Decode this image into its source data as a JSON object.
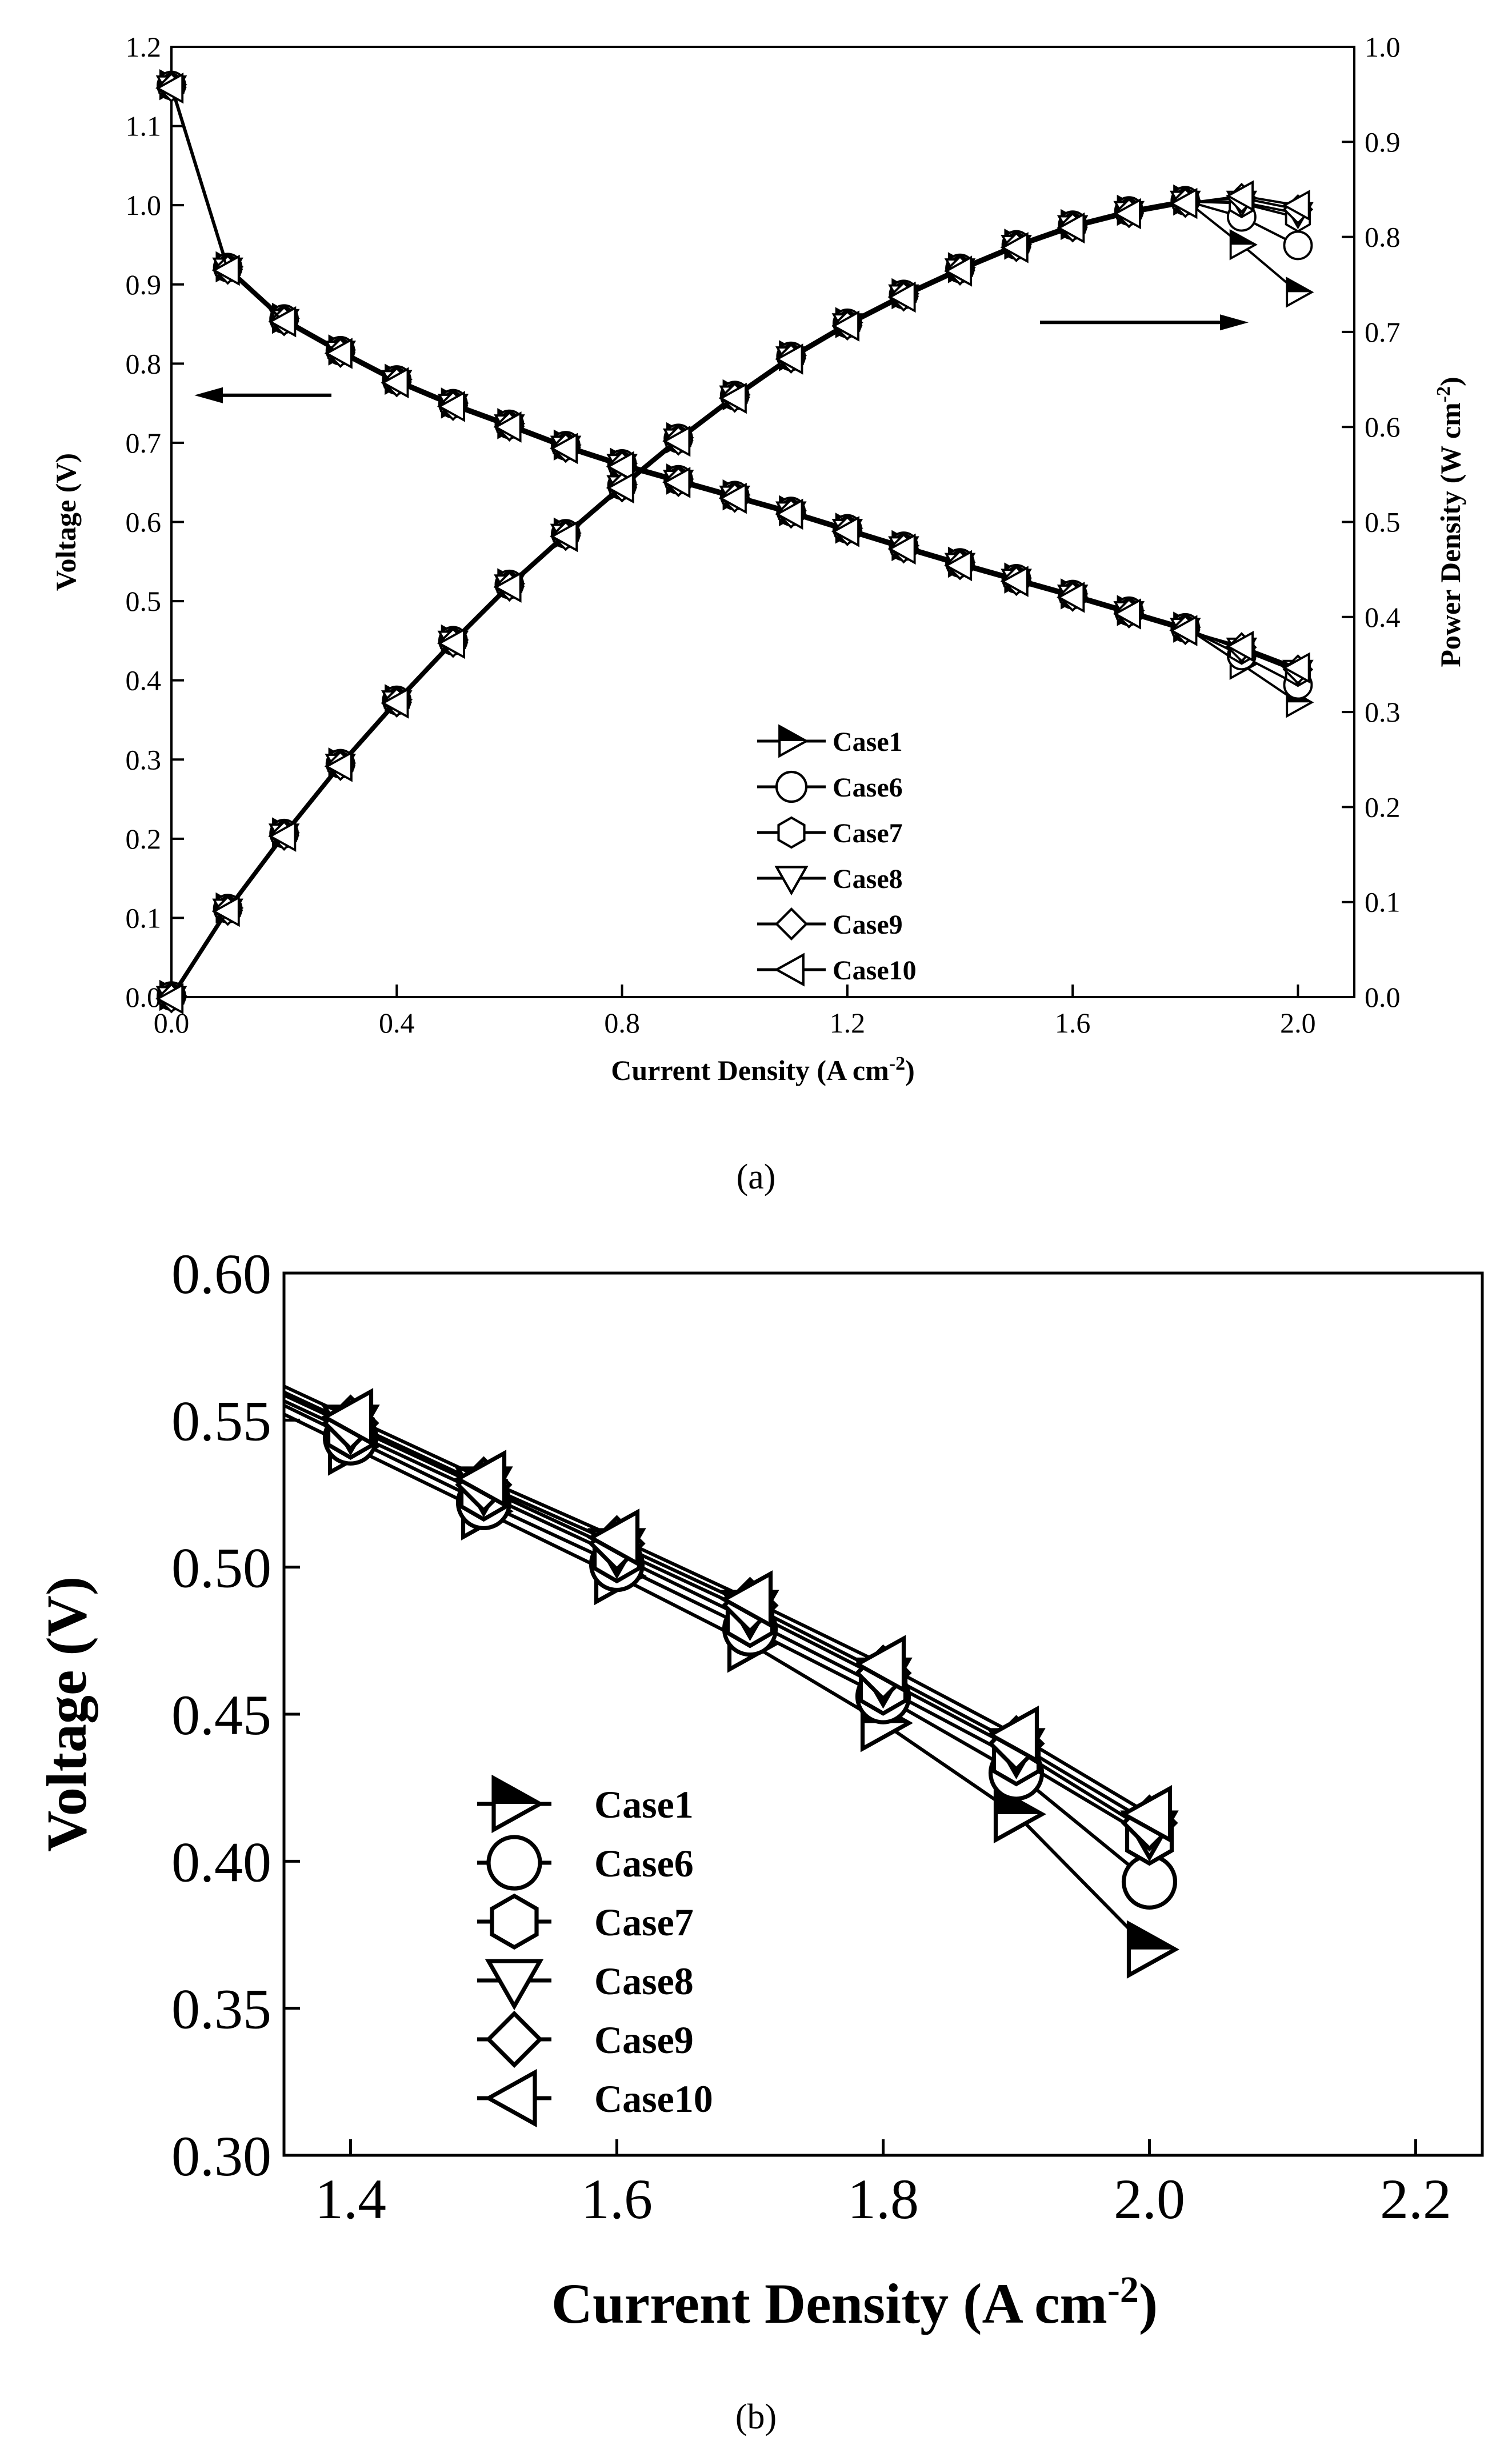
{
  "chart_data": [
    {
      "type": "line",
      "panel_label": "(a)",
      "xlabel": "Current Density (A cm",
      "xlabel_sup": "-2",
      "xlabel_end": ")",
      "ylabel": "Voltage (V)",
      "y2label": "Power Density (W cm",
      "y2label_sup": "-2",
      "y2label_end": ")",
      "xlim": [
        0,
        2.1
      ],
      "ylim": [
        0,
        1.2
      ],
      "y2lim": [
        0,
        1.0
      ],
      "xticks": [
        "0.0",
        "0.4",
        "0.8",
        "1.2",
        "1.6",
        "2.0"
      ],
      "xtick_values": [
        0,
        0.4,
        0.8,
        1.2,
        1.6,
        2.0
      ],
      "yticks": [
        "0.0",
        "0.1",
        "0.2",
        "0.3",
        "0.4",
        "0.5",
        "0.6",
        "0.7",
        "0.8",
        "0.9",
        "1.0",
        "1.1",
        "1.2"
      ],
      "ytick_values": [
        0,
        0.1,
        0.2,
        0.3,
        0.4,
        0.5,
        0.6,
        0.7,
        0.8,
        0.9,
        1.0,
        1.1,
        1.2
      ],
      "y2ticks": [
        "0.0",
        "0.1",
        "0.2",
        "0.3",
        "0.4",
        "0.5",
        "0.6",
        "0.7",
        "0.8",
        "0.9",
        "1.0"
      ],
      "y2tick_values": [
        0,
        0.1,
        0.2,
        0.3,
        0.4,
        0.5,
        0.6,
        0.7,
        0.8,
        0.9,
        1.0
      ],
      "arrow_note": "left arrow points to voltage axis, right arrow points to power density axis",
      "x": [
        0.0,
        0.1,
        0.2,
        0.3,
        0.4,
        0.5,
        0.6,
        0.7,
        0.8,
        0.9,
        1.0,
        1.1,
        1.2,
        1.3,
        1.4,
        1.5,
        1.6,
        1.7,
        1.8,
        1.9,
        2.0
      ],
      "voltage_common": [
        1.15,
        0.92,
        0.855,
        0.815,
        0.778,
        0.748,
        0.722,
        0.695,
        0.672,
        0.652,
        0.632,
        0.612,
        0.59,
        0.568,
        0.547,
        0.527,
        0.507,
        0.486,
        0.465
      ],
      "series": [
        {
          "name": "Case1",
          "marker": "right-tri-half",
          "voltage_tail": [
            0.418,
            0.37
          ],
          "power_tail": [
            0.79,
            0.74
          ]
        },
        {
          "name": "Case6",
          "marker": "circle",
          "voltage_tail": [
            0.43,
            0.393
          ],
          "power_tail": [
            0.82,
            0.79
          ]
        },
        {
          "name": "Case7",
          "marker": "hexagon",
          "voltage_tail": [
            0.438,
            0.41
          ],
          "power_tail": [
            0.835,
            0.82
          ]
        },
        {
          "name": "Case8",
          "marker": "down-tri",
          "voltage_tail": [
            0.44,
            0.412
          ],
          "power_tail": [
            0.837,
            0.825
          ]
        },
        {
          "name": "Case9",
          "marker": "diamond",
          "voltage_tail": [
            0.443,
            0.415
          ],
          "power_tail": [
            0.842,
            0.83
          ]
        },
        {
          "name": "Case10",
          "marker": "left-tri",
          "voltage_tail": [
            0.445,
            0.418
          ],
          "power_tail": [
            0.845,
            0.835
          ]
        }
      ]
    },
    {
      "type": "line",
      "panel_label": "(b)",
      "xlabel": "Current Density (A cm",
      "xlabel_sup": "-2",
      "xlabel_end": ")",
      "ylabel": "Voltage (V)",
      "xlim": [
        1.35,
        2.25
      ],
      "ylim": [
        0.3,
        0.6
      ],
      "xticks": [
        "1.4",
        "1.6",
        "1.8",
        "2.0",
        "2.2"
      ],
      "xtick_values": [
        1.4,
        1.6,
        1.8,
        2.0,
        2.2
      ],
      "yticks": [
        "0.30",
        "0.35",
        "0.40",
        "0.45",
        "0.50",
        "0.55",
        "0.60"
      ],
      "ytick_values": [
        0.3,
        0.35,
        0.4,
        0.45,
        0.5,
        0.55,
        0.6
      ],
      "x": [
        1.4,
        1.5,
        1.6,
        1.7,
        1.8,
        1.9,
        2.0
      ],
      "series": [
        {
          "name": "Case1",
          "marker": "right-tri-half",
          "values": [
            0.541,
            0.519,
            0.497,
            0.474,
            0.447,
            0.416,
            0.37
          ]
        },
        {
          "name": "Case6",
          "marker": "circle",
          "values": [
            0.544,
            0.522,
            0.501,
            0.479,
            0.456,
            0.43,
            0.393
          ]
        },
        {
          "name": "Case7",
          "marker": "hexagon",
          "values": [
            0.546,
            0.525,
            0.504,
            0.482,
            0.459,
            0.435,
            0.408
          ]
        },
        {
          "name": "Case8",
          "marker": "down-tri",
          "values": [
            0.548,
            0.527,
            0.506,
            0.485,
            0.462,
            0.438,
            0.41
          ]
        },
        {
          "name": "Case9",
          "marker": "diamond",
          "values": [
            0.549,
            0.528,
            0.508,
            0.487,
            0.464,
            0.44,
            0.413
          ]
        },
        {
          "name": "Case10",
          "marker": "left-tri",
          "values": [
            0.551,
            0.53,
            0.51,
            0.489,
            0.467,
            0.443,
            0.416
          ]
        }
      ]
    }
  ]
}
